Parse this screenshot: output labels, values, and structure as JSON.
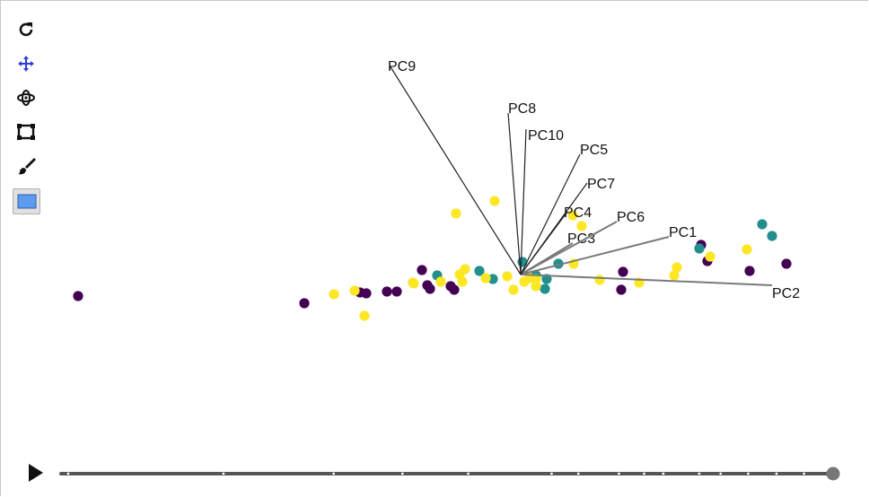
{
  "toolbar": {
    "tools": [
      {
        "name": "reset-icon",
        "active": false
      },
      {
        "name": "pan-icon",
        "active": true,
        "color": "#2a3fd8"
      },
      {
        "name": "rotate-icon",
        "active": false
      },
      {
        "name": "zoom-box-icon",
        "active": false
      },
      {
        "name": "brush-icon",
        "active": false
      },
      {
        "name": "select-rectangle-icon",
        "active": true,
        "color": "#5b9bf0"
      }
    ]
  },
  "colors": {
    "purple": "#440154",
    "teal": "#21908d",
    "yellow": "#fde725",
    "axis_dark": "#222222",
    "axis_grey": "#7a7a7a"
  },
  "chart_data": {
    "type": "scatter",
    "title": "",
    "xlabel": "",
    "ylabel": "",
    "grid": false,
    "origin": [
      0,
      0
    ],
    "axes": [
      {
        "label": "PC1",
        "tip": [
          165,
          42
        ],
        "shade": "axis_grey"
      },
      {
        "label": "PC2",
        "tip": [
          280,
          -12
        ],
        "shade": "axis_grey"
      },
      {
        "label": "PC3",
        "tip": [
          58,
          35
        ],
        "shade": "axis_grey"
      },
      {
        "label": "PC4",
        "tip": [
          52,
          70
        ],
        "shade": "axis_dark"
      },
      {
        "label": "PC5",
        "tip": [
          66,
          134
        ],
        "shade": "axis_dark"
      },
      {
        "label": "PC6",
        "tip": [
          107,
          59
        ],
        "shade": "axis_grey"
      },
      {
        "label": "PC7",
        "tip": [
          74,
          102
        ],
        "shade": "axis_dark"
      },
      {
        "label": "PC8",
        "tip": [
          -14,
          180
        ],
        "shade": "axis_dark"
      },
      {
        "label": "PC9",
        "tip": [
          -146,
          233
        ],
        "shade": "axis_dark"
      },
      {
        "label": "PC10",
        "tip": [
          6,
          162
        ],
        "shade": "axis_dark"
      }
    ],
    "series": [
      {
        "group": "purple",
        "points": [
          [
            -493,
            -24
          ],
          [
            -241,
            -32
          ],
          [
            -179,
            -20
          ],
          [
            -172,
            -21
          ],
          [
            -149,
            -19
          ],
          [
            -138,
            -19
          ],
          [
            -110,
            5
          ],
          [
            -104,
            -12
          ],
          [
            -101,
            -16
          ],
          [
            -78,
            -13
          ],
          [
            -74,
            -17
          ],
          [
            114,
            3
          ],
          [
            112,
            -17
          ],
          [
            201,
            33
          ],
          [
            208,
            15
          ],
          [
            255,
            4
          ],
          [
            296,
            12
          ]
        ]
      },
      {
        "group": "teal",
        "points": [
          [
            2,
            14
          ],
          [
            -93,
            -1
          ],
          [
            -46,
            4
          ],
          [
            -31,
            -5
          ],
          [
            17,
            -1
          ],
          [
            29,
            -5
          ],
          [
            27,
            -16
          ],
          [
            42,
            12
          ],
          [
            199,
            29
          ],
          [
            269,
            56
          ],
          [
            280,
            43
          ]
        ]
      },
      {
        "group": "yellow",
        "points": [
          [
            -29,
            82
          ],
          [
            -72,
            68
          ],
          [
            -208,
            -22
          ],
          [
            -185,
            -18
          ],
          [
            -174,
            -46
          ],
          [
            -119,
            -10
          ],
          [
            -120,
            -9
          ],
          [
            -89,
            -8
          ],
          [
            -68,
            0
          ],
          [
            -62,
            6
          ],
          [
            -65,
            -8
          ],
          [
            -39,
            -4
          ],
          [
            -15,
            -2
          ],
          [
            -8,
            -17
          ],
          [
            4,
            -8
          ],
          [
            10,
            -4
          ],
          [
            17,
            -13
          ],
          [
            58,
            66
          ],
          [
            68,
            54
          ],
          [
            59,
            12
          ],
          [
            88,
            -6
          ],
          [
            132,
            -9
          ],
          [
            171,
            -1
          ],
          [
            174,
            8
          ],
          [
            211,
            20
          ],
          [
            252,
            28
          ],
          [
            17,
            -5
          ]
        ]
      }
    ]
  },
  "player": {
    "position": 1.0,
    "ticks": [
      0,
      0.203,
      0.347,
      0.437,
      0.523,
      0.632,
      0.667,
      0.72,
      0.753,
      0.778,
      0.825,
      0.853,
      0.889,
      0.926,
      0.962,
      1.0
    ]
  }
}
